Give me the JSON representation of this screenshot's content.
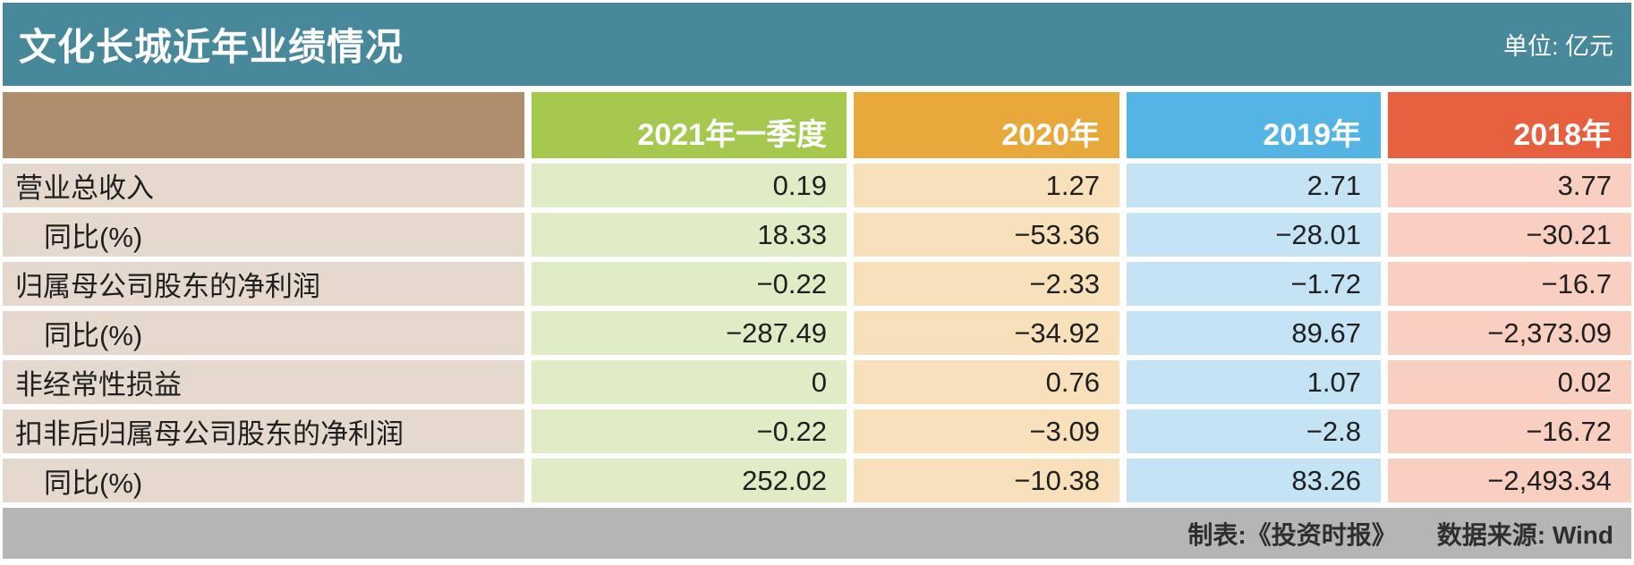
{
  "colors": {
    "title_bar_bg": "#47889A",
    "footer_bg": "#B5B5B5",
    "header_cells": [
      "#AF8E6E",
      "#A5C84E",
      "#E8A83C",
      "#54B4E4",
      "#E6603E"
    ],
    "body_cells": [
      "#E5D9CE",
      "#E0ECC5",
      "#F8E1BA",
      "#C4E4F5",
      "#F9CFC2"
    ],
    "header_text": "#FFFFFF",
    "body_text": "#1F1F1F"
  },
  "chart_data": {
    "type": "table",
    "title": "文化长城近年业绩情况",
    "unit": "单位: 亿元",
    "columns": [
      "",
      "2021年一季度",
      "2020年",
      "2019年",
      "2018年"
    ],
    "rows": [
      {
        "label": "营业总收入",
        "indent": false,
        "values": [
          "0.19",
          "1.27",
          "2.71",
          "3.77"
        ]
      },
      {
        "label": "同比(%)",
        "indent": true,
        "values": [
          "18.33",
          "−53.36",
          "−28.01",
          "−30.21"
        ]
      },
      {
        "label": "归属母公司股东的净利润",
        "indent": false,
        "values": [
          "−0.22",
          "−2.33",
          "−1.72",
          "−16.7"
        ]
      },
      {
        "label": "同比(%)",
        "indent": true,
        "values": [
          "−287.49",
          "−34.92",
          "89.67",
          "−2,373.09"
        ]
      },
      {
        "label": "非经常性损益",
        "indent": false,
        "values": [
          "0",
          "0.76",
          "1.07",
          "0.02"
        ]
      },
      {
        "label": "扣非后归属母公司股东的净利润",
        "indent": false,
        "values": [
          "−0.22",
          "−3.09",
          "−2.8",
          "−16.72"
        ]
      },
      {
        "label": "同比(%)",
        "indent": true,
        "values": [
          "252.02",
          "−10.38",
          "83.26",
          "−2,493.34"
        ]
      }
    ],
    "footer": {
      "creator": "制表:《投资时报》",
      "source": "数据来源: Wind"
    },
    "layout": {
      "legend": "none",
      "grid": "off",
      "value_alignment": "right"
    }
  }
}
